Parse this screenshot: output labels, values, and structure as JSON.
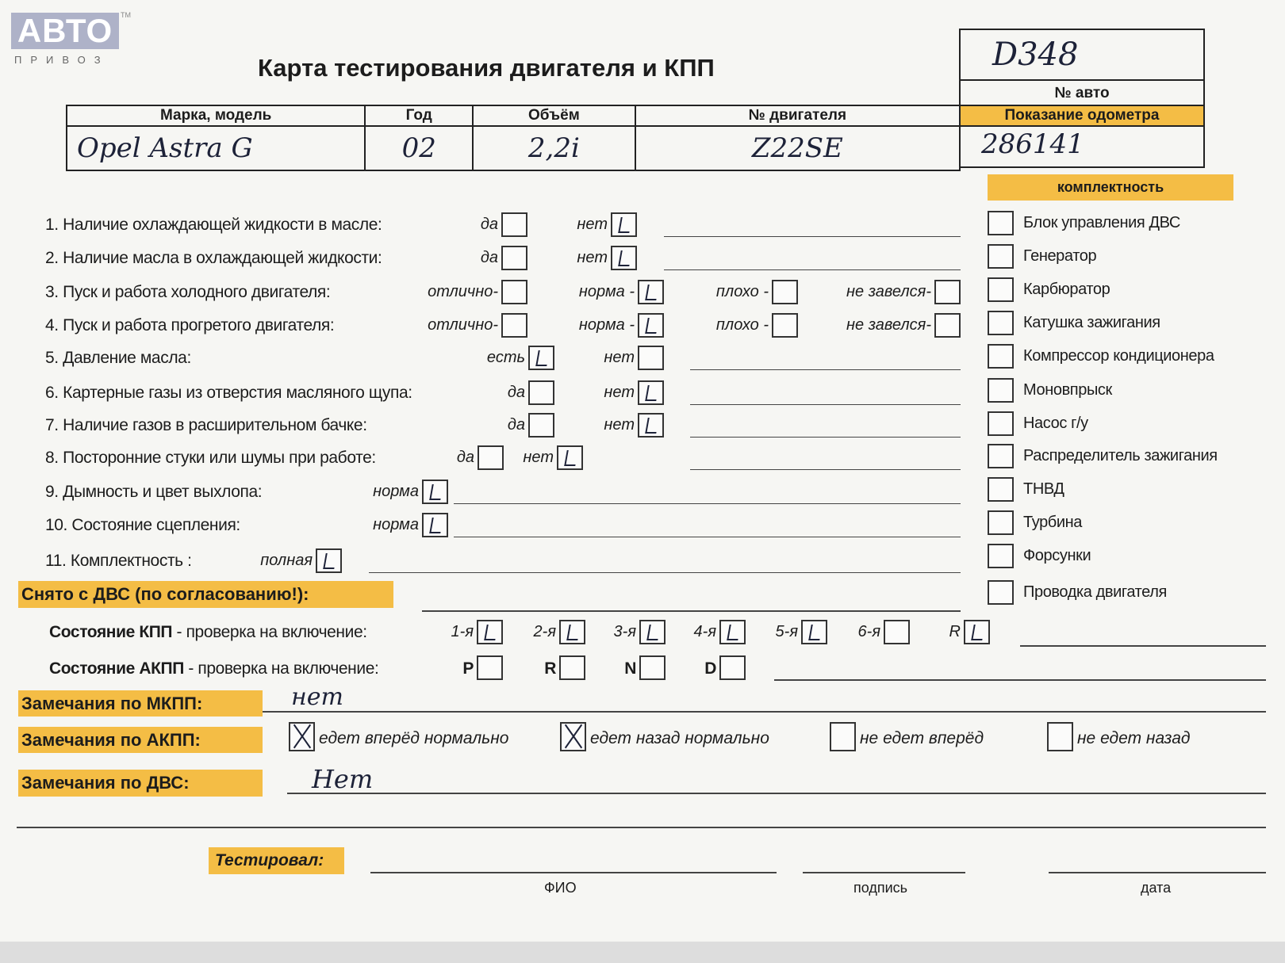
{
  "logo": {
    "text": "АВТО",
    "tm": "ТМ",
    "sub": "ПРИВОЗ"
  },
  "title": "Карта тестирования двигателя  и КПП",
  "header": {
    "columns": [
      "Марка, модель",
      "Год",
      "Объём",
      "№ двигателя"
    ],
    "values": [
      "Opel Astra G",
      "02",
      "2,2i",
      "Z22SE"
    ]
  },
  "auto": {
    "number": "D348",
    "number_label": "№ авто",
    "odometer_label": "Показание одометра",
    "odometer": "286141"
  },
  "completeness": {
    "title": "комплектность",
    "items": [
      {
        "label": "Блок управления ДВС",
        "checked": false
      },
      {
        "label": "Генератор",
        "checked": false
      },
      {
        "label": "Карбюратор",
        "checked": false
      },
      {
        "label": "Катушка зажигания",
        "checked": false
      },
      {
        "label": "Компрессор кондиционера",
        "checked": false
      },
      {
        "label": "Моновпрыск",
        "checked": false
      },
      {
        "label": "Насос г/у",
        "checked": false
      },
      {
        "label": "Распределитель зажигания",
        "checked": false
      },
      {
        "label": "ТНВД",
        "checked": false
      },
      {
        "label": "Турбина",
        "checked": false
      },
      {
        "label": "Форсунки",
        "checked": false
      },
      {
        "label": "Проводка двигателя",
        "checked": false
      }
    ]
  },
  "checks": [
    {
      "label": "1. Наличие охлаждающей жидкости в масле:",
      "options": [
        {
          "label": "да",
          "checked": false
        },
        {
          "label": "нет",
          "checked": true
        }
      ]
    },
    {
      "label": "2. Наличие масла в охлаждающей жидкости:",
      "options": [
        {
          "label": "да",
          "checked": false
        },
        {
          "label": "нет",
          "checked": true
        }
      ]
    },
    {
      "label": "3. Пуск и работа холодного двигателя:",
      "options": [
        {
          "label": "отлично-",
          "checked": false
        },
        {
          "label": "норма -",
          "checked": true
        },
        {
          "label": "плохо -",
          "checked": false
        },
        {
          "label": "не завелся-",
          "checked": false
        }
      ]
    },
    {
      "label": "4. Пуск и работа прогретого двигателя:",
      "options": [
        {
          "label": "отлично-",
          "checked": false
        },
        {
          "label": "норма -",
          "checked": true
        },
        {
          "label": "плохо -",
          "checked": false
        },
        {
          "label": "не завелся-",
          "checked": false
        }
      ]
    },
    {
      "label": "5. Давление масла:",
      "options": [
        {
          "label": "есть",
          "checked": true
        },
        {
          "label": "нет",
          "checked": false
        }
      ]
    },
    {
      "label": "6. Картерные газы из отверстия масляного щупа:",
      "options": [
        {
          "label": "да",
          "checked": false
        },
        {
          "label": "нет",
          "checked": true
        }
      ]
    },
    {
      "label": "7. Наличие газов в расширительном бачке:",
      "options": [
        {
          "label": "да",
          "checked": false
        },
        {
          "label": "нет",
          "checked": true
        }
      ]
    },
    {
      "label": "8. Посторонние стуки или шумы при работе:",
      "options": [
        {
          "label": "да",
          "checked": false
        },
        {
          "label": "нет",
          "checked": true
        }
      ]
    },
    {
      "label": "9. Дымность и цвет выхлопа:",
      "options": [
        {
          "label": "норма",
          "checked": true
        }
      ]
    },
    {
      "label": "10. Состояние сцепления:",
      "options": [
        {
          "label": "норма",
          "checked": true
        }
      ]
    },
    {
      "label": "11. Комплектность :",
      "options": [
        {
          "label": "полная",
          "checked": true
        }
      ]
    }
  ],
  "removed_label": "Снято с ДВС (по согласованию!):",
  "kpp": {
    "label_bold": "Состояние КПП",
    "label_rest": " - проверка на включение:",
    "gears": [
      {
        "label": "1-я",
        "checked": true
      },
      {
        "label": "2-я",
        "checked": true
      },
      {
        "label": "3-я",
        "checked": true
      },
      {
        "label": "4-я",
        "checked": true
      },
      {
        "label": "5-я",
        "checked": true
      },
      {
        "label": "6-я",
        "checked": false
      },
      {
        "label": "R",
        "checked": true
      }
    ]
  },
  "akpp": {
    "label_bold": "Состояние АКПП",
    "label_rest": " - проверка на включение:",
    "gears": [
      {
        "label": "P",
        "checked": false
      },
      {
        "label": "R",
        "checked": false
      },
      {
        "label": "N",
        "checked": false
      },
      {
        "label": "D",
        "checked": false
      }
    ]
  },
  "remarks": {
    "mkpp_label": "Замечания по МКПП:",
    "mkpp_value": "нет",
    "akpp_label": "Замечания по АКПП:",
    "akpp_options": [
      {
        "label": "едет вперёд нормально",
        "checked": true
      },
      {
        "label": "едет назад нормально",
        "checked": true
      },
      {
        "label": "не едет вперёд",
        "checked": false
      },
      {
        "label": "не едет назад",
        "checked": false
      }
    ],
    "dvs_label": "Замечания по ДВС:",
    "dvs_value": "Нет"
  },
  "tested": {
    "label": "Тестировал:",
    "fio": "ФИО",
    "signature": "подпись",
    "date": "дата"
  }
}
